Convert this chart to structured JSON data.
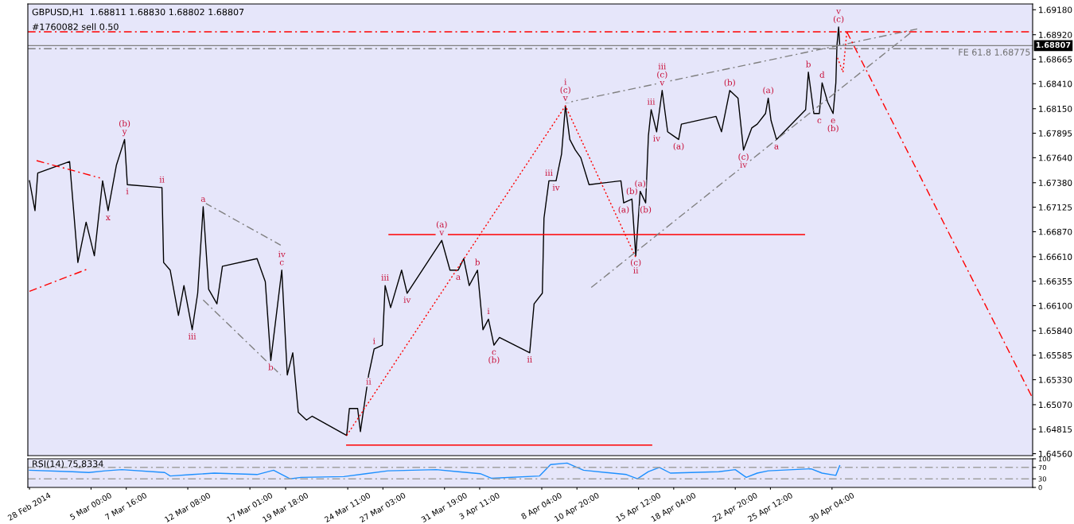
{
  "chart_data": [
    {
      "type": "line",
      "title": "GBPUSD,H1  1.68811 1.68830 1.68802 1.68807",
      "xlim": [
        "2014-02-28T05:00",
        "2014-05-15T09:00"
      ],
      "ylim": [
        1.6454,
        1.6924
      ],
      "yticks": [
        {
          "value": 1.6918,
          "label": "1.69180"
        },
        {
          "value": 1.6892,
          "label": "1.68920"
        },
        {
          "value": 1.68665,
          "label": "1.68665"
        },
        {
          "value": 1.6841,
          "label": "1.68410"
        },
        {
          "value": 1.6815,
          "label": "1.68150"
        },
        {
          "value": 1.67895,
          "label": "1.67895"
        },
        {
          "value": 1.6764,
          "label": "1.67640"
        },
        {
          "value": 1.6738,
          "label": "1.67380"
        },
        {
          "value": 1.67125,
          "label": "1.67125"
        },
        {
          "value": 1.6687,
          "label": "1.66870"
        },
        {
          "value": 1.6661,
          "label": "1.66610"
        },
        {
          "value": 1.66355,
          "label": "1.66355"
        },
        {
          "value": 1.661,
          "label": "1.66100"
        },
        {
          "value": 1.6584,
          "label": "1.65840"
        },
        {
          "value": 1.65585,
          "label": "1.65585"
        },
        {
          "value": 1.6533,
          "label": "1.65330"
        },
        {
          "value": 1.6507,
          "label": "1.65070"
        },
        {
          "value": 1.64815,
          "label": "1.64815"
        },
        {
          "value": 1.6456,
          "label": "1.64560"
        }
      ],
      "tick_labels": "y",
      "grid": false,
      "legend": false,
      "series": [
        {
          "color": "#000000",
          "line_style": "solid",
          "x": [
            "2014-02-28T08:00",
            "2014-02-28T18:00",
            "2014-02-28T23:00",
            "2014-03-03T09:00",
            "2014-03-04T00:00",
            "2014-03-04T15:00",
            "2014-03-05T06:00",
            "2014-03-05T21:00",
            "2014-03-06T07:00",
            "2014-03-06T22:00",
            "2014-03-07T13:00",
            "2014-03-07T18:00",
            "2014-03-10T09:00",
            "2014-03-10T12:00",
            "2014-03-11T00:00",
            "2014-03-11T15:00",
            "2014-03-12T01:00",
            "2014-03-12T16:00",
            "2014-03-13T02:00",
            "2014-03-13T12:00",
            "2014-03-13T22:00",
            "2014-03-14T13:00",
            "2014-03-14T23:00",
            "2014-03-17T14:00",
            "2014-03-18T05:00",
            "2014-03-18T15:00",
            "2014-03-19T01:00",
            "2014-03-19T11:00",
            "2014-03-19T21:00",
            "2014-03-20T07:00",
            "2014-03-20T17:00",
            "2014-03-21T08:00",
            "2014-03-21T18:00",
            "2014-03-24T09:00",
            "2014-03-24T14:00",
            "2014-03-25T05:00",
            "2014-03-25T10:00",
            "2014-03-26T01:00",
            "2014-03-26T11:00",
            "2014-03-27T02:00",
            "2014-03-27T07:00",
            "2014-03-27T17:00",
            "2014-03-28T13:00",
            "2014-03-28T23:00",
            "2014-03-31T14:00",
            "2014-04-01T05:00",
            "2014-04-01T20:00",
            "2014-04-02T06:00",
            "2014-04-02T16:00",
            "2014-04-03T07:00",
            "2014-04-03T17:00",
            "2014-04-04T03:00",
            "2014-04-04T13:00",
            "2014-04-04T23:00",
            "2014-04-07T06:00",
            "2014-04-07T14:00",
            "2014-04-08T05:00",
            "2014-04-08T08:00",
            "2014-04-08T17:00",
            "2014-04-09T06:00",
            "2014-04-09T16:00",
            "2014-04-09T23:00",
            "2014-04-10T07:00",
            "2014-04-10T17:00",
            "2014-04-11T03:00",
            "2014-04-11T18:00",
            "2014-04-14T04:00",
            "2014-04-14T09:00",
            "2014-04-15T00:00",
            "2014-04-15T07:00",
            "2014-04-15T15:00",
            "2014-04-16T01:00",
            "2014-04-16T06:00",
            "2014-04-16T11:00",
            "2014-04-16T21:00",
            "2014-04-17T07:00",
            "2014-04-17T17:00",
            "2014-04-18T03:00",
            "2014-04-18T13:00",
            "2014-04-18T18:00",
            "2014-04-21T09:00",
            "2014-04-21T19:00",
            "2014-04-22T10:00",
            "2014-04-23T01:00",
            "2014-04-23T11:00",
            "2014-04-24T02:00",
            "2014-04-24T12:00",
            "2014-04-25T03:00",
            "2014-04-25T08:00",
            "2014-04-25T13:00",
            "2014-04-25T23:00",
            "2014-04-28T04:00",
            "2014-04-28T09:00",
            "2014-04-28T19:00",
            "2014-04-29T05:00",
            "2014-04-29T10:00",
            "2014-04-29T20:00",
            "2014-04-30T06:00",
            "2014-04-30T11:00",
            "2014-04-30T13:00",
            "2014-04-30T16:00",
            "2014-04-30T18:00"
          ],
          "values": [
            1.674,
            1.6709,
            1.6748,
            1.676,
            1.6655,
            1.6697,
            1.6662,
            1.674,
            1.6709,
            1.6756,
            1.6783,
            1.6736,
            1.6733,
            1.6655,
            1.6647,
            1.66,
            1.6631,
            1.6585,
            1.6623,
            1.6713,
            1.6627,
            1.6612,
            1.6651,
            1.6659,
            1.6635,
            1.6553,
            1.66,
            1.6647,
            1.6538,
            1.6561,
            1.6499,
            1.6491,
            1.6495,
            1.6475,
            1.6503,
            1.6503,
            1.6479,
            1.6538,
            1.6565,
            1.6569,
            1.6631,
            1.6608,
            1.6647,
            1.6623,
            1.6678,
            1.6647,
            1.6647,
            1.6659,
            1.6631,
            1.6647,
            1.6585,
            1.6596,
            1.6569,
            1.6577,
            1.6561,
            1.6612,
            1.6623,
            1.6701,
            1.674,
            1.674,
            1.6768,
            1.6818,
            1.6783,
            1.6772,
            1.6764,
            1.6736,
            1.674,
            1.6717,
            1.6721,
            1.6662,
            1.6729,
            1.6717,
            1.6787,
            1.6814,
            1.6791,
            1.6834,
            1.6791,
            1.6787,
            1.6783,
            1.6799,
            1.6807,
            1.6791,
            1.6834,
            1.6826,
            1.6772,
            1.6795,
            1.6799,
            1.681,
            1.6826,
            1.6803,
            1.6783,
            1.6814,
            1.6853,
            1.681,
            1.681,
            1.6842,
            1.6822,
            1.681,
            1.6842,
            1.6881,
            1.69,
            1.6882
          ]
        },
        {
          "color": "#ff0000",
          "line_style": "solid",
          "x": [
            "2014-03-27T14:00",
            "2014-04-28T02:00"
          ],
          "values": [
            1.6684,
            1.6684
          ]
        },
        {
          "color": "#ff0000",
          "line_style": "solid",
          "x": [
            "2014-03-24T09:00",
            "2014-04-16T12:00"
          ],
          "values": [
            1.6465,
            1.6465
          ]
        },
        {
          "color": "#ff0000",
          "line_style": "dotted",
          "x": [
            "2014-03-24T09:00",
            "2014-04-09T23:00",
            "2014-04-15T08:00"
          ],
          "values": [
            1.6475,
            1.6818,
            1.6659
          ]
        },
        {
          "color": "#808080",
          "line_style": "dashed",
          "x": [
            "2014-04-09T23:00",
            "2014-05-06T15:00"
          ],
          "values": [
            1.6821,
            1.6898
          ]
        },
        {
          "color": "#808080",
          "line_style": "dashed",
          "x": [
            "2014-04-11T22:00",
            "2014-05-06T05:00"
          ],
          "values": [
            1.6629,
            1.6895
          ]
        },
        {
          "color": "#808080",
          "line_style": "dashed",
          "x": [
            "2014-03-13T15:00",
            "2014-03-19T09:00"
          ],
          "values": [
            1.6717,
            1.6673
          ]
        },
        {
          "color": "#808080",
          "line_style": "dashed",
          "x": [
            "2014-03-13T12:00",
            "2014-03-19T09:00"
          ],
          "values": [
            1.6616,
            1.6538
          ]
        },
        {
          "color": "#ff0000",
          "line_style": "dashed",
          "x": [
            "2014-02-28T21:00",
            "2014-03-05T16:00"
          ],
          "values": [
            1.6761,
            1.6743
          ]
        },
        {
          "color": "#ff0000",
          "line_style": "dashed",
          "x": [
            "2014-02-28T08:00",
            "2014-03-04T17:00"
          ],
          "values": [
            1.6625,
            1.6648
          ]
        },
        {
          "color": "#ff0000",
          "line_style": "dotted",
          "x": [
            "2014-04-30T14:00",
            "2014-05-01T00:00",
            "2014-05-01T07:00"
          ],
          "values": [
            1.6868,
            1.6853,
            1.6895
          ]
        },
        {
          "color": "#ff0000",
          "line_style": "dashed",
          "x": [
            "2014-05-01T07:00",
            "2014-05-15T07:00"
          ],
          "values": [
            1.6895,
            1.6516
          ]
        }
      ],
      "ref_lines": [
        {
          "axis": "y",
          "value": 1.6895,
          "label": "#1760082 sell 0.50",
          "color": "#ff0000",
          "line_style": "dashed"
        },
        {
          "axis": "y",
          "value": 1.68807,
          "label": "1.68807",
          "color": "#808080",
          "line_style": "solid"
        },
        {
          "axis": "y",
          "value": 1.68775,
          "label": "FE 61.8 1.68775",
          "color": "#808080",
          "line_style": "dashed"
        }
      ],
      "annotations": [
        {
          "text": "(b)\ny",
          "x": "2014-03-07T13:00",
          "y": 1.6783
        },
        {
          "text": "ii",
          "x": "2014-03-10T09:00",
          "y": 1.6733
        },
        {
          "text": "i",
          "x": "2014-03-07T18:00",
          "y": 1.6736
        },
        {
          "text": "x",
          "x": "2014-03-06T07:00",
          "y": 1.6709
        },
        {
          "text": "iii",
          "x": "2014-03-12T16:00",
          "y": 1.6585
        },
        {
          "text": "a",
          "x": "2014-03-13T12:00",
          "y": 1.6713
        },
        {
          "text": "iv\nc",
          "x": "2014-03-19T11:00",
          "y": 1.6647
        },
        {
          "text": "b",
          "x": "2014-03-18T15:00",
          "y": 1.6553
        },
        {
          "text": "(a)\nv",
          "x": "2014-03-31T14:00",
          "y": 1.6678
        },
        {
          "text": "iii",
          "x": "2014-03-27T07:00",
          "y": 1.6631
        },
        {
          "text": "b",
          "x": "2014-04-03T07:00",
          "y": 1.6647
        },
        {
          "text": "iv",
          "x": "2014-03-28T23:00",
          "y": 1.6623
        },
        {
          "text": "a",
          "x": "2014-04-01T20:00",
          "y": 1.6647
        },
        {
          "text": "i",
          "x": "2014-03-26T11:00",
          "y": 1.6565
        },
        {
          "text": "ii",
          "x": "2014-03-26T01:00",
          "y": 1.6538
        },
        {
          "text": "i",
          "x": "2014-04-04T03:00",
          "y": 1.6596
        },
        {
          "text": "c\n(b)",
          "x": "2014-04-04T13:00",
          "y": 1.6569
        },
        {
          "text": "ii",
          "x": "2014-04-07T06:00",
          "y": 1.6561
        },
        {
          "text": "iii",
          "x": "2014-04-08T17:00",
          "y": 1.674
        },
        {
          "text": "iv",
          "x": "2014-04-09T06:00",
          "y": 1.674
        },
        {
          "text": "i\n(c)\nv",
          "x": "2014-04-09T23:00",
          "y": 1.6818
        },
        {
          "text": "(a)",
          "x": "2014-04-14T09:00",
          "y": 1.6717
        },
        {
          "text": "(b)",
          "x": "2014-04-15T00:00",
          "y": 1.6721
        },
        {
          "text": "(c)\nii",
          "x": "2014-04-15T07:00",
          "y": 1.6662
        },
        {
          "text": "(a)",
          "x": "2014-04-15T15:00",
          "y": 1.6729
        },
        {
          "text": "(b)",
          "x": "2014-04-16T01:00",
          "y": 1.6717
        },
        {
          "text": "iii",
          "x": "2014-04-16T11:00",
          "y": 1.6814
        },
        {
          "text": "iv",
          "x": "2014-04-16T21:00",
          "y": 1.6791
        },
        {
          "text": "iii\n(c)\nv",
          "x": "2014-04-17T07:00",
          "y": 1.6834
        },
        {
          "text": "(a)",
          "x": "2014-04-18T13:00",
          "y": 1.6783
        },
        {
          "text": "(b)",
          "x": "2014-04-22T10:00",
          "y": 1.6834
        },
        {
          "text": "(c)\niv",
          "x": "2014-04-23T11:00",
          "y": 1.6772
        },
        {
          "text": "(a)",
          "x": "2014-04-25T08:00",
          "y": 1.6826
        },
        {
          "text": "a",
          "x": "2014-04-25T23:00",
          "y": 1.6783
        },
        {
          "text": "b",
          "x": "2014-04-28T09:00",
          "y": 1.6853
        },
        {
          "text": "c",
          "x": "2014-04-29T05:00",
          "y": 1.681
        },
        {
          "text": "d",
          "x": "2014-04-29T10:00",
          "y": 1.6842
        },
        {
          "text": "e\n(b)",
          "x": "2014-04-30T06:00",
          "y": 1.681
        },
        {
          "text": "v\n(c)",
          "x": "2014-04-30T16:00",
          "y": 1.69
        }
      ]
    },
    {
      "type": "line",
      "title": "RSI(14) 75,8334",
      "xlim": [
        "2014-02-28T05:00",
        "2014-05-15T09:00"
      ],
      "ylim": [
        0,
        100
      ],
      "xticks": [
        {
          "value": "2014-02-28T08:00",
          "label": "28 Feb 2014"
        },
        {
          "value": "2014-03-05T00:00",
          "label": "5 Mar 00:00"
        },
        {
          "value": "2014-03-07T16:00",
          "label": "7 Mar 16:00"
        },
        {
          "value": "2014-03-12T08:00",
          "label": "12 Mar 08:00"
        },
        {
          "value": "2014-03-17T01:00",
          "label": "17 Mar 01:00"
        },
        {
          "value": "2014-03-19T18:00",
          "label": "19 Mar 18:00"
        },
        {
          "value": "2014-03-24T11:00",
          "label": "24 Mar 11:00"
        },
        {
          "value": "2014-03-27T03:00",
          "label": "27 Mar 03:00"
        },
        {
          "value": "2014-03-31T19:00",
          "label": "31 Mar 19:00"
        },
        {
          "value": "2014-04-03T11:00",
          "label": "3 Apr 11:00"
        },
        {
          "value": "2014-04-08T04:00",
          "label": "8 Apr 04:00"
        },
        {
          "value": "2014-04-10T20:00",
          "label": "10 Apr 20:00"
        },
        {
          "value": "2014-04-15T12:00",
          "label": "15 Apr 12:00"
        },
        {
          "value": "2014-04-18T04:00",
          "label": "18 Apr 04:00"
        },
        {
          "value": "2014-04-22T20:00",
          "label": "22 Apr 20:00"
        },
        {
          "value": "2014-04-25T12:00",
          "label": "25 Apr 12:00"
        },
        {
          "value": "2014-04-30T04:00",
          "label": "30 Apr 04:00"
        }
      ],
      "yticks": [
        0,
        30,
        70,
        100
      ],
      "grid": false,
      "legend": false,
      "series": [
        {
          "color": "#1e90ff",
          "line_style": "solid",
          "x": [
            "2014-02-28T08:00",
            "2014-03-03T14:00",
            "2014-03-04T20:00",
            "2014-03-06T02:00",
            "2014-03-07T08:00",
            "2014-03-10T14:00",
            "2014-03-11T00:00",
            "2014-03-12T16:00",
            "2014-03-14T08:00",
            "2014-03-17T14:00",
            "2014-03-18T20:00",
            "2014-03-20T02:00",
            "2014-03-20T22:00",
            "2014-03-24T04:00",
            "2014-03-25T20:00",
            "2014-03-27T12:00",
            "2014-03-31T04:00",
            "2014-04-01T20:00",
            "2014-04-03T12:00",
            "2014-04-04T08:00",
            "2014-04-08T00:00",
            "2014-04-08T20:00",
            "2014-04-10T02:00",
            "2014-04-11T08:00",
            "2014-04-14T14:00",
            "2014-04-15T10:00",
            "2014-04-16T06:00",
            "2014-04-17T02:00",
            "2014-04-17T22:00",
            "2014-04-21T14:00",
            "2014-04-22T20:00",
            "2014-04-23T16:00",
            "2014-04-24T12:00",
            "2014-04-25T08:00",
            "2014-04-28T14:00",
            "2014-04-29T10:00",
            "2014-04-30T11:00",
            "2014-04-30T18:00"
          ],
          "values": [
            60,
            55,
            52,
            58,
            62,
            52,
            40,
            45,
            50,
            45,
            60,
            30,
            35,
            38,
            48,
            58,
            62,
            55,
            48,
            32,
            40,
            80,
            85,
            60,
            45,
            30,
            55,
            70,
            50,
            55,
            62,
            35,
            50,
            58,
            65,
            50,
            42,
            76
          ]
        }
      ],
      "ref_lines": [
        {
          "axis": "y",
          "value": 70,
          "color": "#a0a0a0",
          "line_style": "dashed"
        },
        {
          "axis": "y",
          "value": 30,
          "color": "#a0a0a0",
          "line_style": "dashed"
        }
      ]
    }
  ]
}
